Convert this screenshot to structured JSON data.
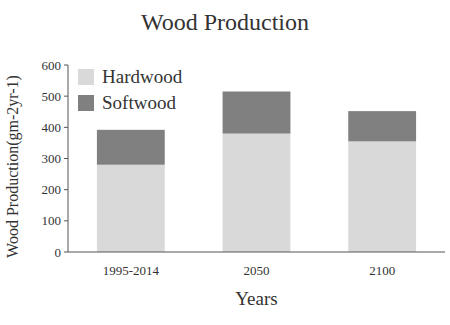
{
  "chart_data": {
    "type": "bar",
    "title": "Wood Production",
    "x_label": "Years",
    "y_label": "Wood Production(gm-2yr-1)",
    "categories": [
      "1995-2014",
      "2050",
      "2100"
    ],
    "series": [
      {
        "name": "Hardwood",
        "color": "#d9d9d9",
        "values": [
          280,
          380,
          355
        ]
      },
      {
        "name": "Softwood",
        "color": "#808080",
        "values": [
          112,
          135,
          97
        ]
      }
    ],
    "stacked": true,
    "grid": false,
    "legend": "upper left",
    "ylim": [
      0,
      600
    ],
    "yticks": [
      0,
      100,
      200,
      300,
      400,
      500,
      600
    ]
  }
}
